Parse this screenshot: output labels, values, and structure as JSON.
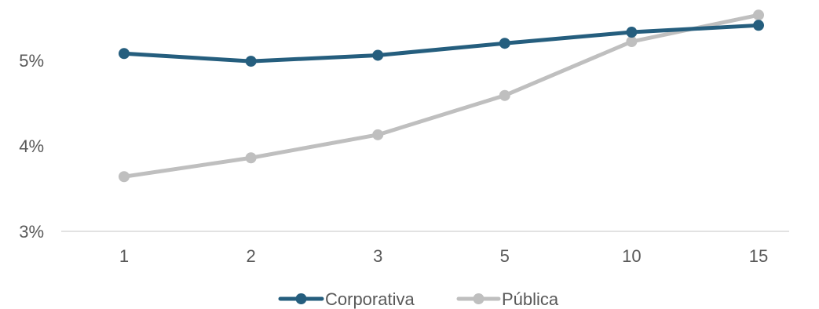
{
  "chart_data": {
    "type": "line",
    "title": "",
    "xlabel": "",
    "ylabel": "",
    "categories": [
      "1",
      "2",
      "3",
      "5",
      "10",
      "15"
    ],
    "ylim": [
      3,
      5.5
    ],
    "yticks": [
      3,
      4,
      5
    ],
    "ytick_labels": [
      "3%",
      "4%",
      "5%"
    ],
    "grid": false,
    "legend_position": "bottom",
    "series": [
      {
        "name": "Corporativa",
        "color": "#255E7E",
        "values": [
          5.08,
          4.99,
          5.06,
          5.2,
          5.33,
          5.41
        ]
      },
      {
        "name": "Pública",
        "color": "#BFBFBF",
        "values": [
          3.64,
          3.86,
          4.13,
          4.59,
          5.22,
          5.53
        ]
      }
    ]
  }
}
